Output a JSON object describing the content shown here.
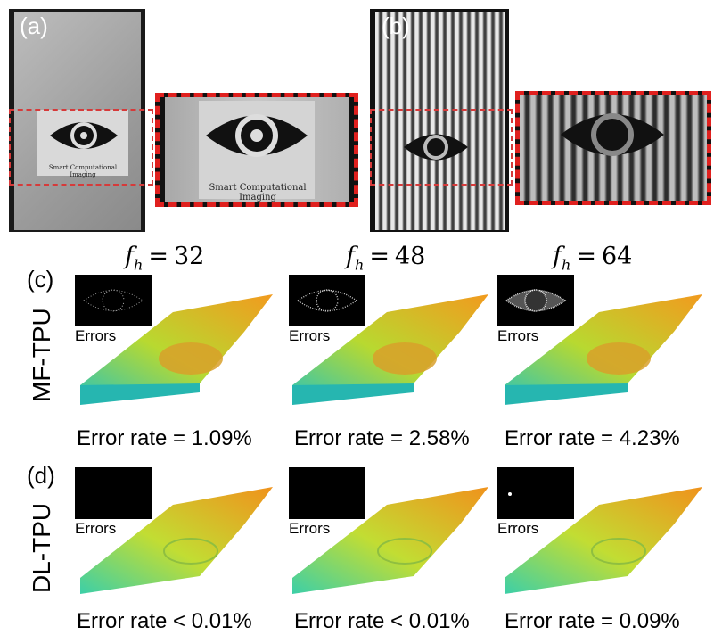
{
  "panels": {
    "a": {
      "label": "(a)"
    },
    "b": {
      "label": "(b)"
    },
    "c": {
      "label": "(c)",
      "row_label": "MF-TPU"
    },
    "d": {
      "label": "(d)",
      "row_label": "DL-TPU"
    }
  },
  "logo_text": "Smart Computational Imaging",
  "column_headers": [
    {
      "var": "f",
      "sub": "h",
      "eq": "=",
      "value": "32"
    },
    {
      "var": "f",
      "sub": "h",
      "eq": "=",
      "value": "48"
    },
    {
      "var": "f",
      "sub": "h",
      "eq": "=",
      "value": "64"
    }
  ],
  "errors_label": "Errors",
  "mf_tpu": {
    "error_rates": [
      "Error rate = 1.09%",
      "Error rate = 2.58%",
      "Error rate = 4.23%"
    ]
  },
  "dl_tpu": {
    "error_rates": [
      "Error rate < 0.01%",
      "Error rate < 0.01%",
      "Error rate = 0.09%"
    ]
  },
  "colors": {
    "dash": "#e0201e",
    "surface_low": "#2ec4b6",
    "surface_mid": "#b8d930",
    "surface_high": "#f29a1e"
  }
}
